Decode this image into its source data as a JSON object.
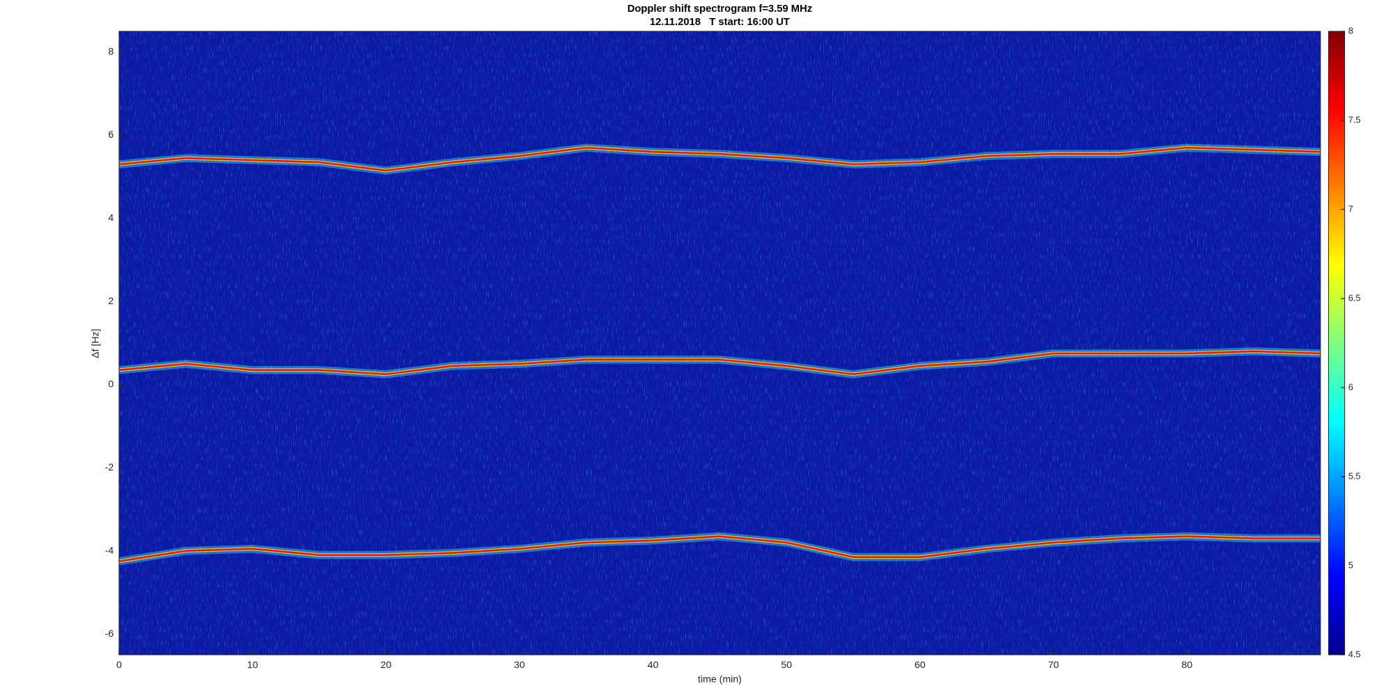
{
  "chart_data": {
    "type": "spectrogram",
    "title": "Doppler shift spectrogram f=3.59 MHz",
    "subtitle": "12.11.2018   T start: 16:00 UT",
    "x_label": "time (min)",
    "y_label": "Δf [Hz]",
    "x": [
      0,
      5,
      10,
      15,
      20,
      25,
      30,
      35,
      40,
      45,
      50,
      55,
      60,
      65,
      70,
      75,
      80,
      85,
      90
    ],
    "series": [
      {
        "color": "#e8141e",
        "values": [
          5.3,
          5.45,
          5.4,
          5.35,
          5.15,
          5.35,
          5.5,
          5.7,
          5.6,
          5.55,
          5.45,
          5.3,
          5.35,
          5.5,
          5.55,
          5.55,
          5.7,
          5.65,
          5.6
        ]
      },
      {
        "color": "#e8141e",
        "values": [
          0.35,
          0.5,
          0.35,
          0.35,
          0.25,
          0.45,
          0.5,
          0.6,
          0.6,
          0.6,
          0.45,
          0.25,
          0.45,
          0.55,
          0.75,
          0.75,
          0.75,
          0.8,
          0.75
        ]
      },
      {
        "color": "#e8141e",
        "values": [
          -4.25,
          -4.0,
          -3.95,
          -4.1,
          -4.1,
          -4.05,
          -3.95,
          -3.8,
          -3.75,
          -3.65,
          -3.8,
          -4.15,
          -4.15,
          -3.95,
          -3.8,
          -3.7,
          -3.65,
          -3.7,
          -3.7
        ]
      }
    ],
    "background_color": "#0b1ba6",
    "xlim": [
      0,
      90
    ],
    "xticks": [
      0,
      10,
      20,
      30,
      40,
      50,
      60,
      70,
      80
    ],
    "ylim": [
      -6.5,
      8.5
    ],
    "yticks": [
      -6,
      -4,
      -2,
      0,
      2,
      4,
      6,
      8
    ],
    "colorbar": {
      "colormap": "jet",
      "lim": [
        4.5,
        8
      ],
      "ticks": [
        4.5,
        5,
        5.5,
        6,
        6.5,
        7,
        7.5,
        8
      ]
    }
  }
}
